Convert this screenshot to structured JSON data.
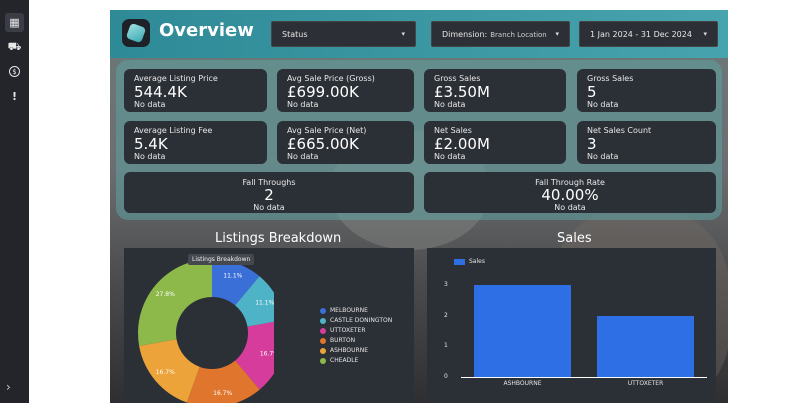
{
  "sidebar": {
    "items": [
      {
        "name": "dashboard-icon",
        "glyph": "▦"
      },
      {
        "name": "cart-icon",
        "glyph": "⛟"
      },
      {
        "name": "dollar-icon",
        "glyph": "$"
      },
      {
        "name": "alert-icon",
        "glyph": "!"
      }
    ],
    "expand_glyph": "›"
  },
  "header": {
    "title": "Overview",
    "status_label": "Status",
    "dimension_label": "Dimension:",
    "dimension_value": "Branch Location",
    "date_range": "1 Jan 2024 - 31 Dec 2024",
    "caret": "▾"
  },
  "kpis": {
    "avg_listing_price": {
      "label": "Average Listing Price",
      "value": "544.4K",
      "note": "No data"
    },
    "avg_sale_price_gross": {
      "label": "Avg Sale Price (Gross)",
      "value": "£699.00K",
      "note": "No data"
    },
    "gross_sales_amount": {
      "label": "Gross Sales",
      "value": "£3.50M",
      "note": "No data"
    },
    "gross_sales_count": {
      "label": "Gross Sales",
      "value": "5",
      "note": "No data"
    },
    "avg_listing_fee": {
      "label": "Average Listing Fee",
      "value": "5.4K",
      "note": "No data"
    },
    "avg_sale_price_net": {
      "label": "Avg Sale Price (Net)",
      "value": "£665.00K",
      "note": "No data"
    },
    "net_sales": {
      "label": "Net Sales",
      "value": "£2.00M",
      "note": "No data"
    },
    "net_sales_count": {
      "label": "Net Sales Count",
      "value": "3",
      "note": "No data"
    },
    "fall_throughs": {
      "label": "Fall Throughs",
      "value": "2",
      "note": "No data"
    },
    "fall_through_rate": {
      "label": "Fall Through Rate",
      "value": "40.00%",
      "note": "No data"
    }
  },
  "listings": {
    "title": "Listings Breakdown",
    "tooltip": "Listings Breakdown"
  },
  "sales": {
    "title": "Sales"
  },
  "colors": {
    "melbourne": "#3a6fd8",
    "castle_donington": "#4fb3c8",
    "uttoxeter": "#d63c9c",
    "burton": "#e0762e",
    "ashbourne": "#eca33a",
    "cheadle": "#8db84a",
    "bar": "#2f6fe6"
  },
  "chart_data": [
    {
      "type": "pie",
      "title": "Listings Breakdown",
      "categories": [
        "MELBOURNE",
        "CASTLE DONINGTON",
        "UTTOXETER",
        "BURTON",
        "ASHBOURNE",
        "CHEADLE"
      ],
      "values": [
        11.1,
        11.1,
        16.7,
        16.7,
        16.7,
        27.8
      ],
      "data_labels": [
        "11.1%",
        "11.1%",
        "16.7%",
        "16.7%",
        "16.7%",
        "27.8%"
      ],
      "legend": "right"
    },
    {
      "type": "bar",
      "title": "Sales",
      "categories": [
        "ASHBOURNE",
        "UTTOXETER"
      ],
      "series": [
        {
          "name": "Sales",
          "values": [
            3,
            2
          ]
        }
      ],
      "ylim": [
        0,
        3
      ],
      "yticks": [
        "0",
        "1",
        "2",
        "3"
      ],
      "legend": "top-left"
    }
  ]
}
